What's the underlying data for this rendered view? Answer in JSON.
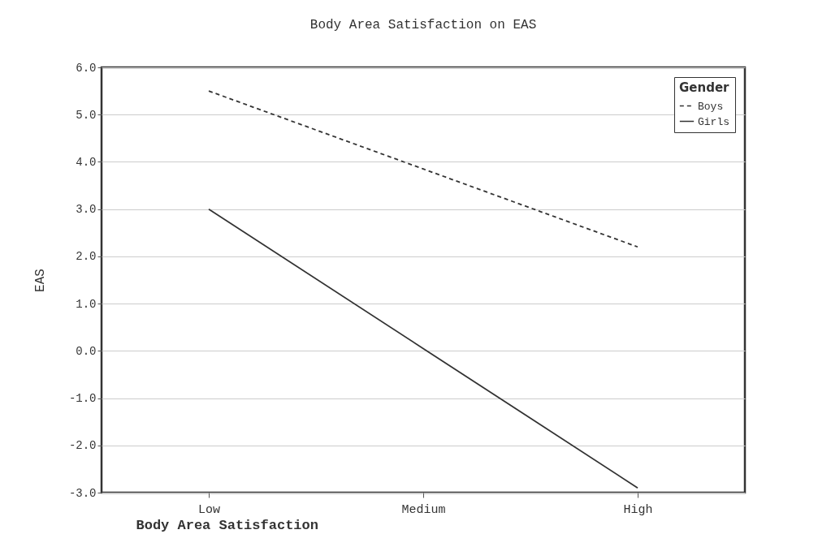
{
  "chart_data": {
    "type": "line",
    "title": "Body Area Satisfaction on EAS",
    "xlabel": "Body Area Satisfaction",
    "ylabel": "EAS",
    "legend_title": "Gender",
    "categories": [
      "Low",
      "Medium",
      "High"
    ],
    "series": [
      {
        "name": "Boys",
        "color": "#333333",
        "line_style": "dashed",
        "values": [
          5.5,
          3.85,
          2.2
        ]
      },
      {
        "name": "Girls",
        "color": "#333333",
        "line_style": "solid",
        "values": [
          3.0,
          0.05,
          -2.9
        ]
      }
    ],
    "ylim": [
      -3,
      6
    ],
    "yticks": [
      {
        "value": -3,
        "label": "-3.0"
      },
      {
        "value": -2,
        "label": "-2.0"
      },
      {
        "value": -1,
        "label": "-1.0"
      },
      {
        "value": 0,
        "label": "0.0"
      },
      {
        "value": 1,
        "label": "1.0"
      },
      {
        "value": 2,
        "label": "2.0"
      },
      {
        "value": 3,
        "label": "3.0"
      },
      {
        "value": 4,
        "label": "4.0"
      },
      {
        "value": 5,
        "label": "5.0"
      },
      {
        "value": 6,
        "label": "6.0"
      }
    ],
    "grid": "y",
    "legend": "top right"
  }
}
